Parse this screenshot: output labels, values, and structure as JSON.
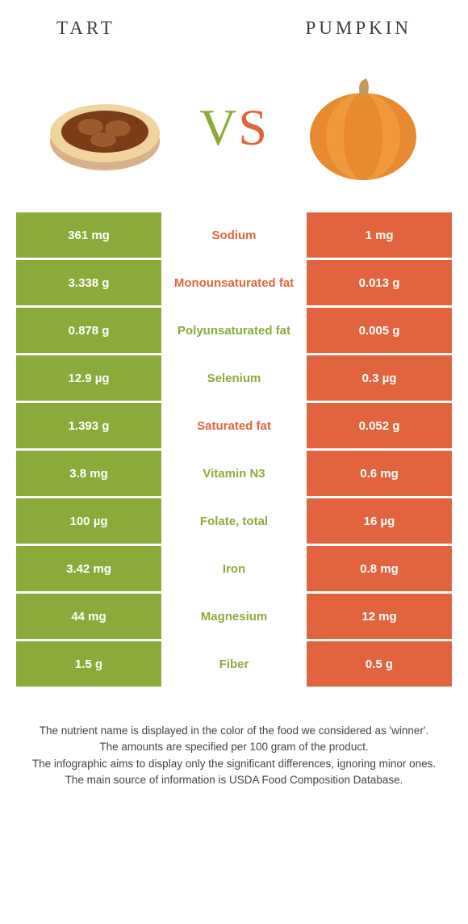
{
  "colors": {
    "left_bar": "#8aab3a",
    "right_bar": "#e2643e",
    "mid_text_left": "#8aab3a",
    "mid_text_right": "#e2643e",
    "title_text": "#3e3e3e",
    "foot_text": "#444444"
  },
  "header": {
    "left_title": "Tart",
    "right_title": "Pumpkin"
  },
  "vs": {
    "v": "V",
    "s": "S"
  },
  "rows": [
    {
      "left": "361 mg",
      "label": "Sodium",
      "right": "1 mg",
      "winner": "right"
    },
    {
      "left": "3.338 g",
      "label": "Monounsaturated fat",
      "right": "0.013 g",
      "winner": "right"
    },
    {
      "left": "0.878 g",
      "label": "Polyunsaturated fat",
      "right": "0.005 g",
      "winner": "left"
    },
    {
      "left": "12.9 µg",
      "label": "Selenium",
      "right": "0.3 µg",
      "winner": "left"
    },
    {
      "left": "1.393 g",
      "label": "Saturated fat",
      "right": "0.052 g",
      "winner": "right"
    },
    {
      "left": "3.8 mg",
      "label": "Vitamin N3",
      "right": "0.6 mg",
      "winner": "left"
    },
    {
      "left": "100 µg",
      "label": "Folate, total",
      "right": "16 µg",
      "winner": "left"
    },
    {
      "left": "3.42 mg",
      "label": "Iron",
      "right": "0.8 mg",
      "winner": "left"
    },
    {
      "left": "44 mg",
      "label": "Magnesium",
      "right": "12 mg",
      "winner": "left"
    },
    {
      "left": "1.5 g",
      "label": "Fiber",
      "right": "0.5 g",
      "winner": "left"
    }
  ],
  "footnotes": [
    "The nutrient name is displayed in the color of the food we considered as 'winner'.",
    "The amounts are specified per 100 gram of the product.",
    "The infographic aims to display only the significant differences, ignoring minor ones.",
    "The main source of information is USDA Food Composition Database."
  ]
}
